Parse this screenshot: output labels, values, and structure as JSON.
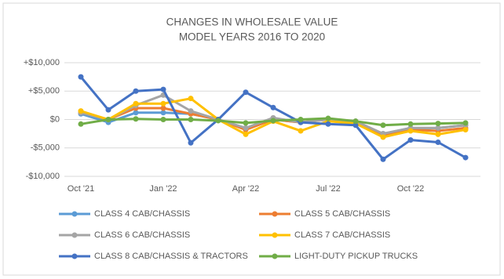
{
  "chart_data": {
    "type": "line",
    "title": "CHANGES IN WHOLESALE VALUE",
    "subtitle": "MODEL YEARS 2016 TO 2020",
    "categories": [
      "Oct '21",
      null,
      null,
      "Jan '22",
      null,
      null,
      "Apr '22",
      null,
      null,
      "Jul '22",
      null,
      null,
      "Oct '22",
      null,
      null
    ],
    "ylim": [
      -10000,
      10000
    ],
    "yticks": [
      {
        "value": -10000,
        "label": "-$10,000"
      },
      {
        "value": -5000,
        "label": "-$5,000"
      },
      {
        "value": 0,
        "label": "$0"
      },
      {
        "value": 5000,
        "label": "+$5,000"
      },
      {
        "value": 10000,
        "label": "+$10,000"
      }
    ],
    "grid": true,
    "legend": "bottom",
    "series": [
      {
        "name": "CLASS 4 CAB/CHASSIS",
        "color": "#5b9bd5",
        "values": [
          1000,
          -500,
          1200,
          1200,
          1000,
          0,
          -1500,
          0,
          -500,
          0,
          -500,
          -2500,
          -1500,
          -1500,
          -1000
        ]
      },
      {
        "name": "CLASS 5 CAB/CHASSIS",
        "color": "#ed7d31",
        "values": [
          1200,
          0,
          2000,
          2000,
          1000,
          0,
          -1800,
          0,
          -500,
          0,
          -500,
          -2700,
          -1800,
          -2000,
          -1500
        ]
      },
      {
        "name": "CLASS 6 CAB/CHASSIS",
        "color": "#a5a5a5",
        "values": [
          1200,
          0,
          2500,
          4300,
          1500,
          0,
          -1500,
          300,
          -500,
          0,
          -300,
          -2500,
          -1500,
          -1500,
          -1000
        ]
      },
      {
        "name": "CLASS 7 CAB/CHASSIS",
        "color": "#ffc000",
        "values": [
          1500,
          0,
          2800,
          2800,
          3700,
          0,
          -2600,
          -300,
          -2000,
          -300,
          -700,
          -3100,
          -2000,
          -2600,
          -1800
        ]
      },
      {
        "name": "CLASS 8 CAB/CHASSIS & TRACTORS",
        "color": "#4472c4",
        "values": [
          7500,
          1700,
          5000,
          5300,
          -4100,
          0,
          4800,
          2100,
          -500,
          -800,
          -1000,
          -7000,
          -3600,
          -4000,
          -6700
        ]
      },
      {
        "name": "LIGHT-DUTY PICKUP TRUCKS",
        "color": "#70ad47",
        "values": [
          -800,
          0,
          100,
          0,
          0,
          -200,
          -600,
          -200,
          0,
          200,
          -300,
          -1000,
          -800,
          -700,
          -600
        ]
      }
    ]
  }
}
